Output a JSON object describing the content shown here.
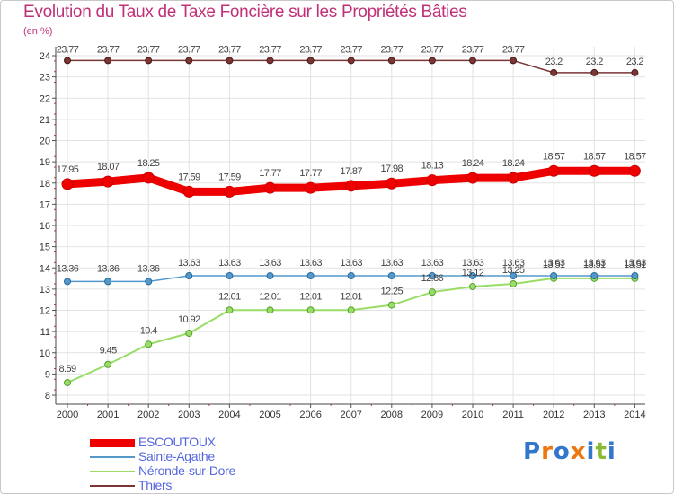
{
  "chart_data": {
    "type": "line",
    "title": "Evolution du Taux de Taxe Foncière sur les Propriétés Bâties",
    "ylabel": "(en %)",
    "xlabel": "",
    "ylim": [
      8,
      24
    ],
    "yticks": [
      "8",
      "9",
      "10",
      "11",
      "12",
      "13",
      "14",
      "15",
      "16",
      "17",
      "18",
      "19",
      "20",
      "21",
      "22",
      "23",
      "24"
    ],
    "x": [
      "2000",
      "2001",
      "2002",
      "2003",
      "2004",
      "2005",
      "2006",
      "2007",
      "2008",
      "2009",
      "2010",
      "2011",
      "2012",
      "2013",
      "2014"
    ],
    "series": [
      {
        "name": "ESCOUTOUX",
        "color": "#ee0000",
        "values": [
          17.95,
          18.07,
          18.25,
          17.59,
          17.59,
          17.77,
          17.77,
          17.87,
          17.98,
          18.13,
          18.24,
          18.24,
          18.57,
          18.57,
          18.57
        ],
        "labels": [
          "17.95",
          "18.07",
          "18.25",
          "17.59",
          "17.59",
          "17.77",
          "17.77",
          "17.87",
          "17.98",
          "18.13",
          "18.24",
          "18.24",
          "18.57",
          "18.57",
          "18.57"
        ]
      },
      {
        "name": "Sainte-Agathe",
        "color": "#5599cc",
        "values": [
          13.36,
          13.36,
          13.36,
          13.63,
          13.63,
          13.63,
          13.63,
          13.63,
          13.63,
          13.63,
          13.63,
          13.63,
          13.63,
          13.63,
          13.63
        ],
        "labels": [
          "13.36",
          "13.36",
          "13.36",
          "13.63",
          "13.63",
          "13.63",
          "13.63",
          "13.63",
          "13.63",
          "13.63",
          "13.63",
          "13.63",
          "13.63",
          "13.63",
          "13.63"
        ]
      },
      {
        "name": "Néronde-sur-Dore",
        "color": "#99dd66",
        "values": [
          8.59,
          9.45,
          10.4,
          10.92,
          12.01,
          12.01,
          12.01,
          12.01,
          12.25,
          12.86,
          13.12,
          13.25,
          13.51,
          13.51,
          13.51
        ],
        "labels": [
          "8.59",
          "9.45",
          "10.4",
          "10.92",
          "12.01",
          "12.01",
          "12.01",
          "12.01",
          "12.25",
          "12.86",
          "13.12",
          "13.25",
          "13.51",
          "13.51",
          "13.51"
        ]
      },
      {
        "name": "Thiers",
        "color": "#7a3535",
        "values": [
          23.77,
          23.77,
          23.77,
          23.77,
          23.77,
          23.77,
          23.77,
          23.77,
          23.77,
          23.77,
          23.77,
          23.77,
          23.2,
          23.2,
          23.2
        ],
        "labels": [
          "23.77",
          "23.77",
          "23.77",
          "23.77",
          "23.77",
          "23.77",
          "23.77",
          "23.77",
          "23.77",
          "23.77",
          "23.77",
          "23.77",
          "23.2",
          "23.2",
          "23.2"
        ]
      }
    ],
    "legend_position": "bottom-left",
    "grid": true
  },
  "logo": {
    "text": "Proxiti"
  }
}
